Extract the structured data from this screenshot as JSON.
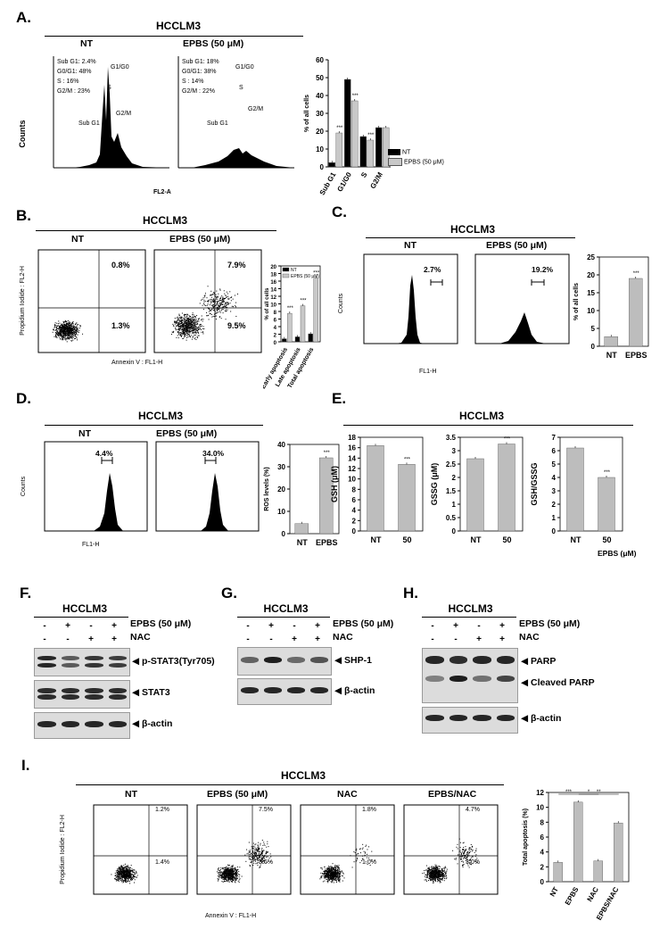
{
  "panels": {
    "A": {
      "label": "A.",
      "cell_line": "HCCLM3",
      "nt_title": "NT",
      "epbs_title": "EPBS (50 μM)",
      "y_axis_label": "Counts",
      "x_axis_label": "FL2-A",
      "y_ticks": [
        "0",
        "50",
        "100",
        "150",
        "200",
        "250",
        "300"
      ],
      "x_ticks": [
        "10⁴·²",
        "10⁵",
        "10⁶",
        "10⁷·²"
      ],
      "nt_stats": [
        "Sub G1:  2.4%",
        "G0/G1:  48%",
        "S :  16%",
        "G2/M :  23%"
      ],
      "epbs_stats": [
        "Sub G1:  18%",
        "G0/G1:  38%",
        "S :  14%",
        "G2/M :  22%"
      ],
      "gate_labels": [
        "G1/G0",
        "S",
        "Sub G1",
        "G2/M"
      ],
      "bar_sig": [
        "***",
        "***",
        "***",
        "***"
      ]
    },
    "B": {
      "label": "B.",
      "cell_line": "HCCLM3",
      "nt_title": "NT",
      "epbs_title": "EPBS (50 μM)",
      "y_axis_label": "Propidium Iodide : FL2-H",
      "x_axis_label": "Annexin V : FL1-H",
      "nt_quadrants": [
        "0.8%",
        "1.3%"
      ],
      "epbs_quadrants": [
        "7.9%",
        "9.5%"
      ],
      "x_ticks": [
        "10³·⁶",
        "10⁴",
        "10⁵",
        "10⁶",
        "10⁷·²"
      ],
      "y_ticks": [
        "10²·⁵",
        "10³",
        "10⁴",
        "10⁵",
        "10⁶",
        "10⁷·²"
      ]
    },
    "C": {
      "label": "C.",
      "cell_line": "HCCLM3",
      "nt_title": "NT",
      "epbs_title": "EPBS (50 μM)",
      "y_axis_label": "Counts",
      "x_axis_label": "FL1-H",
      "nt_pct": "2.7%",
      "epbs_pct": "19.2%",
      "y_ticks": [
        "0",
        "20",
        "40",
        "60",
        "80",
        "100",
        "120",
        "140",
        "160",
        "180",
        "200"
      ],
      "x_ticks": [
        "10¹",
        "10²",
        "10³",
        "10⁴",
        "10⁵",
        "10⁷·²"
      ]
    },
    "D": {
      "label": "D.",
      "cell_line": "HCCLM3",
      "nt_title": "NT",
      "epbs_title": "EPBS (50 μM)",
      "y_axis_label": "Counts",
      "x_axis_label": "FL1-H",
      "nt_pct": "4.4%",
      "epbs_pct": "34.0%",
      "y_ticks": [
        "0",
        "50",
        "100",
        "150",
        "200",
        "250",
        "300"
      ],
      "x_ticks": [
        "10⁰",
        "10¹",
        "10²",
        "10³",
        "10⁴",
        "10⁵",
        "10⁶",
        "10⁷·²"
      ]
    },
    "E": {
      "label": "E.",
      "cell_line": "HCCLM3",
      "unit_label": "EPBS (μM)"
    },
    "F": {
      "label": "F.",
      "cell_line": "HCCLM3",
      "row1": "EPBS (50 μM)",
      "row2": "NAC",
      "epbs_signs": [
        "-",
        "+",
        "-",
        "+"
      ],
      "nac_signs": [
        "-",
        "-",
        "+",
        "+"
      ],
      "blots": [
        "◀ p-STAT3(Tyr705)",
        "◀ STAT3",
        "◀ β-actin"
      ]
    },
    "G": {
      "label": "G.",
      "cell_line": "HCCLM3",
      "row1": "EPBS (50 μM)",
      "row2": "NAC",
      "epbs_signs": [
        "-",
        "+",
        "-",
        "+"
      ],
      "nac_signs": [
        "-",
        "-",
        "+",
        "+"
      ],
      "blots": [
        "◀ SHP-1",
        "◀ β-actin"
      ]
    },
    "H": {
      "label": "H.",
      "cell_line": "HCCLM3",
      "row1": "EPBS (50 μM)",
      "row2": "NAC",
      "epbs_signs": [
        "-",
        "+",
        "-",
        "+"
      ],
      "nac_signs": [
        "-",
        "-",
        "+",
        "+"
      ],
      "blots": [
        "◀ PARP",
        "◀ Cleaved PARP",
        "◀ β-actin"
      ]
    },
    "I": {
      "label": "I.",
      "cell_line": "HCCLM3",
      "titles": [
        "NT",
        "EPBS (50 μM)",
        "NAC",
        "EPBS/NAC"
      ],
      "upper_right": [
        "1.2%",
        "7.5%",
        "1.8%",
        "4.7%"
      ],
      "lower_right": [
        "1.4%",
        "3.6%",
        "1.0%",
        "3.0%"
      ],
      "y_axis_label": "Propidium Iodide : FL2-H",
      "x_axis_label": "Annexin V : FL1-H",
      "x_ticks": [
        "10³·⁷",
        "10⁵",
        "10⁶",
        "10⁷·²"
      ],
      "y_ticks": [
        "10¹·⁵",
        "10³",
        "10⁴",
        "10⁵",
        "10⁶",
        "10⁷·²"
      ]
    }
  },
  "chart_data": [
    {
      "id": "A-cell-cycle-bars",
      "type": "bar",
      "categories": [
        "Sub G1",
        "G1/G0",
        "S",
        "G2/M"
      ],
      "series": [
        {
          "name": "NT",
          "values": [
            2.4,
            49,
            17,
            22
          ],
          "color": "#000000"
        },
        {
          "name": "EPBS (50 μM)",
          "values": [
            19,
            37,
            15,
            22
          ],
          "color": "#c8c8c8"
        }
      ],
      "ylabel": "% of all cells",
      "ylim": [
        0,
        60
      ],
      "yticks": [
        0,
        10,
        20,
        30,
        40,
        50,
        60
      ],
      "significance": [
        "***",
        "***",
        "***",
        ""
      ],
      "legend_placement": "right"
    },
    {
      "id": "B-apoptosis-bars",
      "type": "bar",
      "categories": [
        "Early apoptosis",
        "Late apoptosis",
        "Total apoptosis"
      ],
      "series": [
        {
          "name": "NT",
          "values": [
            0.8,
            1.3,
            2.1
          ],
          "color": "#000000"
        },
        {
          "name": "EPBS (50 μM)",
          "values": [
            7.5,
            9.5,
            16.8
          ],
          "color": "#c8c8c8"
        }
      ],
      "ylabel": "% of all cells",
      "ylim": [
        0,
        20
      ],
      "yticks": [
        0,
        2,
        4,
        6,
        8,
        10,
        12,
        14,
        16,
        18,
        20
      ],
      "significance": [
        "***",
        "***",
        "***"
      ],
      "legend_placement": "top"
    },
    {
      "id": "C-bars",
      "type": "bar",
      "categories": [
        "NT",
        "EPBS"
      ],
      "values": [
        2.7,
        19
      ],
      "ylabel": "% of all cells",
      "ylim": [
        0,
        25
      ],
      "yticks": [
        0,
        5,
        10,
        15,
        20,
        25
      ],
      "significance": [
        "",
        "***"
      ]
    },
    {
      "id": "D-bars",
      "type": "bar",
      "categories": [
        "NT",
        "EPBS"
      ],
      "values": [
        4.5,
        34
      ],
      "ylabel": "ROS levels (%)",
      "ylim": [
        0,
        40
      ],
      "yticks": [
        0,
        10,
        20,
        30,
        40
      ],
      "significance": [
        "",
        "***"
      ]
    },
    {
      "id": "E-GSH",
      "type": "bar",
      "categories": [
        "NT",
        "50"
      ],
      "values": [
        16.4,
        12.8
      ],
      "ylabel": "GSH (μM)",
      "ylim": [
        0,
        18
      ],
      "yticks": [
        0,
        2,
        4,
        6,
        8,
        10,
        12,
        14,
        16,
        18
      ],
      "significance": [
        "",
        "***"
      ]
    },
    {
      "id": "E-GSSG",
      "type": "bar",
      "categories": [
        "NT",
        "50"
      ],
      "values": [
        2.7,
        3.25
      ],
      "ylabel": "GSSG (μM)",
      "ylim": [
        0,
        3.5
      ],
      "yticks": [
        0,
        0.5,
        1,
        1.5,
        2,
        2.5,
        3,
        3.5
      ],
      "significance": [
        "",
        "***"
      ]
    },
    {
      "id": "E-GSH-GSSG",
      "type": "bar",
      "categories": [
        "NT",
        "50"
      ],
      "values": [
        6.2,
        4.0
      ],
      "ylabel": "GSH/GSSG",
      "ylim": [
        0,
        7
      ],
      "yticks": [
        0,
        1,
        2,
        3,
        4,
        5,
        6,
        7
      ],
      "significance": [
        "",
        "***"
      ]
    },
    {
      "id": "I-total-apoptosis",
      "type": "bar",
      "categories": [
        "NT",
        "EPBS",
        "NAC",
        "EPBS/NAC"
      ],
      "values": [
        2.6,
        10.7,
        2.8,
        7.9
      ],
      "ylabel": "Total apoptosis (%)",
      "ylim": [
        0,
        12
      ],
      "yticks": [
        0,
        2,
        4,
        6,
        8,
        10,
        12
      ],
      "significance": [
        "***",
        "*",
        "**"
      ]
    }
  ]
}
